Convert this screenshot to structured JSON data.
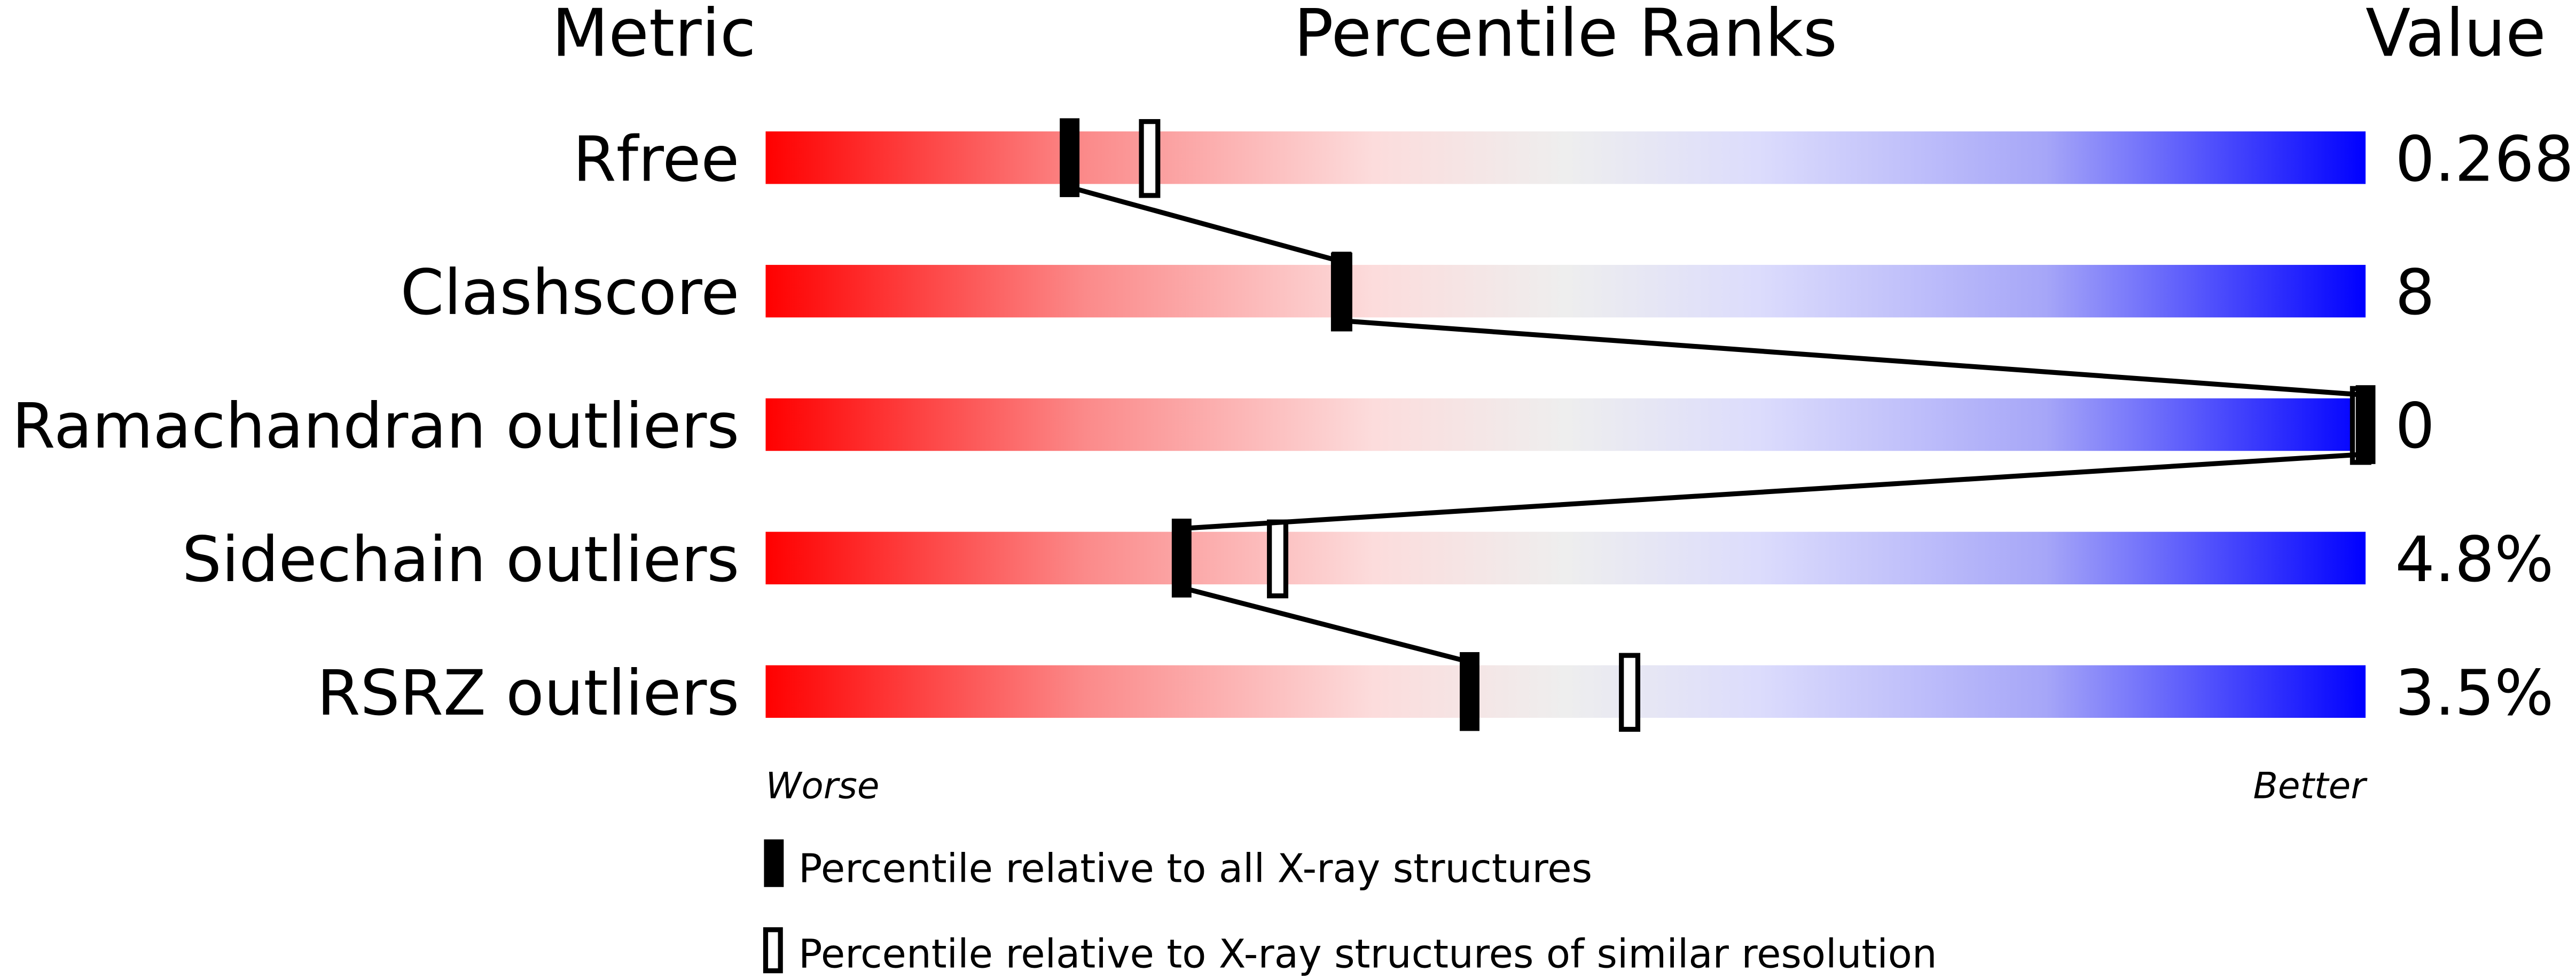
{
  "chart_data": {
    "type": "percentile-bar",
    "headers": {
      "metric": "Metric",
      "ranks": "Percentile Ranks",
      "value": "Value"
    },
    "xlim": [
      0,
      100
    ],
    "axis_labels": {
      "left": "Worse",
      "right": "Better"
    },
    "rows": [
      {
        "metric": "Rfree",
        "value": "0.268",
        "percentile_all": 19,
        "percentile_similar": 24
      },
      {
        "metric": "Clashscore",
        "value": "8",
        "percentile_all": 36,
        "percentile_similar": 36
      },
      {
        "metric": "Ramachandran outliers",
        "value": "0",
        "percentile_all": 100,
        "percentile_similar": 100
      },
      {
        "metric": "Sidechain outliers",
        "value": "4.8%",
        "percentile_all": 26,
        "percentile_similar": 32
      },
      {
        "metric": "RSRZ outliers",
        "value": "3.5%",
        "percentile_all": 44,
        "percentile_similar": 54
      }
    ],
    "legend": [
      {
        "marker": "filled",
        "label": "Percentile relative to all X-ray structures"
      },
      {
        "marker": "open",
        "label": "Percentile relative to X-ray structures of similar resolution"
      }
    ],
    "colors": {
      "worse": "#ff0000",
      "middle": "#eeeeee",
      "better": "#0000ff"
    }
  }
}
